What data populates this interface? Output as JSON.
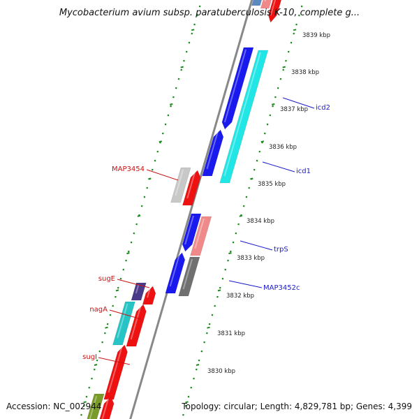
{
  "title": "Mycobacterium avium subsp. paratuberculosis K-10, complete g...",
  "accession": "Accession: NC_002944",
  "topology": "Topology: circular; Length: 4,829,781 bp; Genes: 4,399",
  "ticks": [
    "3839 kbp",
    "3838 kbp",
    "3837 kbp",
    "3836 kbp",
    "3835 kbp",
    "3834 kbp",
    "3833 kbp",
    "3832 kbp",
    "3831 kbp",
    "3830 kbp"
  ],
  "colors": {
    "forward_label": "#1a1acc",
    "reverse_label": "#cc1111",
    "blue": "#1a1aee",
    "cyan": "#22e5e5",
    "red": "#ee1111",
    "pink": "#f08a8a",
    "gray": "#707070",
    "lightgray": "#c8c8c8",
    "navy": "#4a3a8a",
    "teal": "#26c4c4",
    "olive": "#7a9a2a",
    "steel": "#5a8ac0",
    "dots": "#1a8a1a"
  },
  "labels": {
    "forward": [
      "icd2",
      "icd1",
      "trpS",
      "MAP3452c"
    ],
    "reverse": [
      "MAP3454",
      "sugE",
      "nagA",
      "sugI"
    ]
  }
}
